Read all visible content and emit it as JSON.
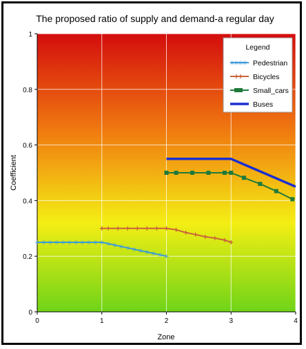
{
  "chart_data": {
    "type": "line",
    "title": "The proposed ratio of supply and demand-a regular day",
    "xlabel": "Zone",
    "ylabel": "Coefficient",
    "xlim": [
      0,
      4
    ],
    "ylim": [
      0,
      1
    ],
    "x_ticks": [
      "0",
      "1",
      "2",
      "3",
      "4"
    ],
    "y_ticks": [
      "0",
      "0.2",
      "0.4",
      "0.6",
      "0.8",
      "1"
    ],
    "grid": true,
    "background": "gradient from red (top) through yellow to green (bottom)",
    "legend": {
      "title": "Legend",
      "position": "top-right"
    },
    "series": [
      {
        "name": "Pedestrian",
        "color": "#3a9ad9",
        "marker": "star",
        "x": [
          0,
          0.1,
          0.2,
          0.3,
          0.4,
          0.5,
          0.6,
          0.7,
          0.8,
          0.9,
          1.0,
          1.1,
          1.2,
          1.3,
          1.4,
          1.5,
          1.6,
          1.7,
          1.8,
          1.9,
          2.0
        ],
        "values": [
          0.25,
          0.25,
          0.25,
          0.25,
          0.25,
          0.25,
          0.25,
          0.25,
          0.25,
          0.25,
          0.25,
          0.245,
          0.24,
          0.235,
          0.23,
          0.225,
          0.22,
          0.215,
          0.21,
          0.205,
          0.2
        ]
      },
      {
        "name": "Bicycles",
        "color": "#c8623a",
        "marker": "plus",
        "x": [
          1.0,
          1.1,
          1.25,
          1.4,
          1.55,
          1.7,
          1.85,
          2.0,
          2.15,
          2.3,
          2.45,
          2.6,
          2.75,
          2.9,
          3.0
        ],
        "values": [
          0.3,
          0.3,
          0.3,
          0.3,
          0.3,
          0.3,
          0.3,
          0.3,
          0.295,
          0.285,
          0.278,
          0.27,
          0.265,
          0.258,
          0.25
        ]
      },
      {
        "name": "Small_cars",
        "color": "#1e7a3a",
        "marker": "square",
        "x": [
          2.0,
          2.15,
          2.4,
          2.65,
          2.9,
          3.0,
          3.2,
          3.45,
          3.7,
          3.95
        ],
        "values": [
          0.5,
          0.5,
          0.5,
          0.5,
          0.5,
          0.5,
          0.482,
          0.46,
          0.434,
          0.405
        ]
      },
      {
        "name": "Buses",
        "color": "#1a2fd1",
        "marker": "none",
        "x": [
          2.0,
          3.0,
          4.0
        ],
        "values": [
          0.55,
          0.55,
          0.45
        ]
      }
    ]
  }
}
